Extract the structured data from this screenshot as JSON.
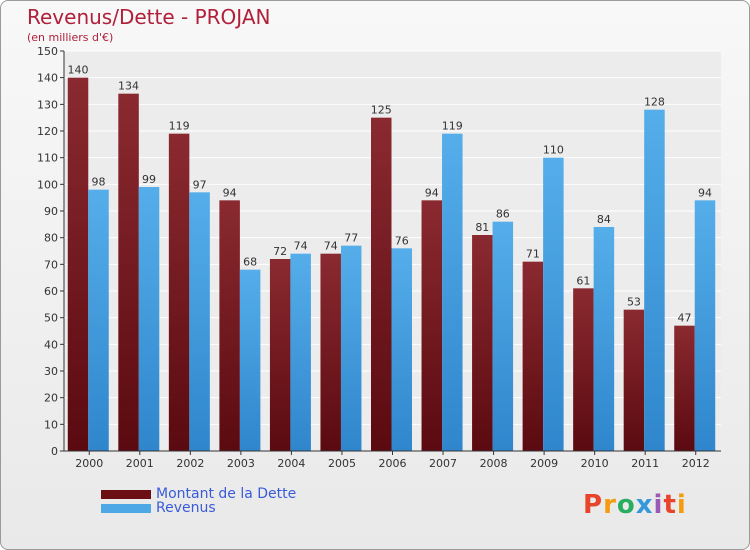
{
  "header": {
    "title": "Revenus/Dette - PROJAN",
    "subtitle": "(en milliers d'€)"
  },
  "legend": {
    "dette_label": "Montant de la Dette",
    "revenus_label": "Revenus"
  },
  "logo": {
    "text": "Proxiti",
    "colors": [
      "#e8432b",
      "#f39c12",
      "#27ae60",
      "#3498db",
      "#9b59b6"
    ]
  },
  "colors": {
    "dette": "#7a1f24",
    "dette_dark": "#5a0a10",
    "revenus": "#4fa8e6",
    "revenus_dark": "#2e86cc",
    "title": "#b0203a",
    "legend_text": "#3a5bd9"
  },
  "chart_data": {
    "type": "bar",
    "title": "Revenus/Dette - PROJAN",
    "subtitle": "(en milliers d'€)",
    "xlabel": "",
    "ylabel": "",
    "ylim": [
      0,
      150
    ],
    "yticks": [
      0,
      10,
      20,
      30,
      40,
      50,
      60,
      70,
      80,
      90,
      100,
      110,
      120,
      130,
      140,
      150
    ],
    "grid": true,
    "categories": [
      "2000",
      "2001",
      "2002",
      "2003",
      "2004",
      "2005",
      "2006",
      "2007",
      "2008",
      "2009",
      "2010",
      "2011",
      "2012"
    ],
    "series": [
      {
        "name": "Montant de la Dette",
        "values": [
          140,
          134,
          119,
          94,
          72,
          74,
          125,
          94,
          81,
          71,
          61,
          53,
          47
        ]
      },
      {
        "name": "Revenus",
        "values": [
          98,
          99,
          97,
          68,
          74,
          77,
          76,
          119,
          86,
          110,
          84,
          128,
          94
        ]
      }
    ],
    "legend_position": "bottom-left"
  }
}
